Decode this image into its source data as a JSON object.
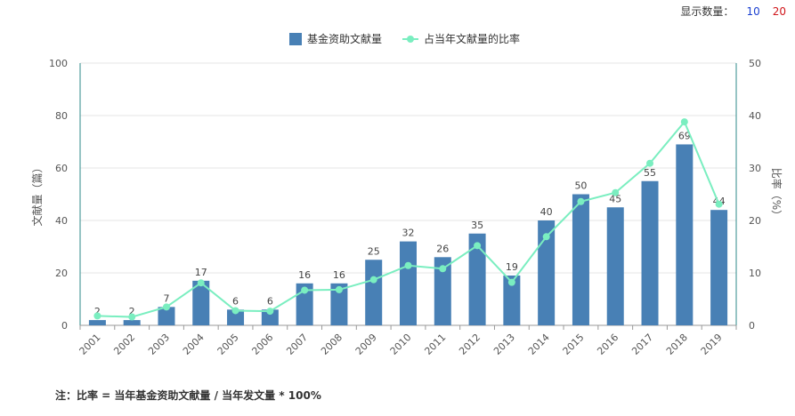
{
  "display_count": {
    "label": "显示数量：",
    "options": [
      "10",
      "20"
    ]
  },
  "note": "注：比率 = 当年基金资助文献量 / 当年发文量 * 100%",
  "colors": {
    "bar": "#4880b5",
    "line": "#7aeec0",
    "axis": "#2d8a8a",
    "grid": "#e5e5e5"
  },
  "chart_data": {
    "type": "bar",
    "categories": [
      "2001",
      "2002",
      "2003",
      "2004",
      "2005",
      "2006",
      "2007",
      "2008",
      "2009",
      "2010",
      "2011",
      "2012",
      "2013",
      "2014",
      "2015",
      "2016",
      "2017",
      "2018",
      "2019"
    ],
    "series": [
      {
        "name": "基金资助文献量",
        "type": "bar",
        "axis": "left",
        "values": [
          2,
          2,
          7,
          17,
          6,
          6,
          16,
          16,
          25,
          32,
          26,
          35,
          19,
          40,
          50,
          45,
          55,
          69,
          44
        ]
      },
      {
        "name": "占当年文献量的比率",
        "type": "line",
        "axis": "right",
        "values": [
          1.8,
          1.6,
          3.5,
          8.1,
          2.8,
          2.7,
          6.7,
          6.8,
          8.7,
          11.4,
          10.8,
          15.2,
          8.2,
          16.9,
          23.6,
          25.3,
          30.9,
          38.8,
          23.1
        ]
      }
    ],
    "ylabel": "文献量（篇）",
    "y2label": "比率（%）",
    "ylim": [
      0,
      100
    ],
    "y2lim": [
      0,
      50
    ],
    "yticks": [
      0,
      20,
      40,
      60,
      80,
      100
    ],
    "y2ticks": [
      0,
      10,
      20,
      30,
      40,
      50
    ],
    "legend_position": "top-center",
    "grid": true
  }
}
